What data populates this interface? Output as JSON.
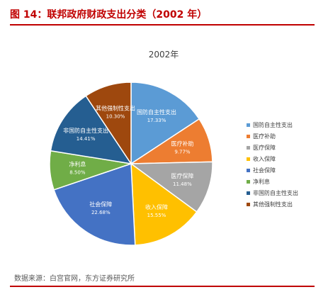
{
  "figure": {
    "title": "图 14：联邦政府财政支出分类（2002 年）",
    "source": "数据来源：白宫官网，东方证券研究所"
  },
  "colors": {
    "accent": "#c00000"
  },
  "chart_data": {
    "type": "pie",
    "title": "2002年",
    "legend_position": "right",
    "slices": [
      {
        "label": "国防自主性支出",
        "value": 17.33,
        "display": "17.33%",
        "color": "#5b9bd5"
      },
      {
        "label": "医疗补助",
        "value": 9.77,
        "display": "9.77%",
        "color": "#ed7d31"
      },
      {
        "label": "医疗保障",
        "value": 11.48,
        "display": "11.48%",
        "color": "#a5a5a5"
      },
      {
        "label": "收入保障",
        "value": 15.55,
        "display": "15.55%",
        "color": "#ffc000"
      },
      {
        "label": "社会保障",
        "value": 22.68,
        "display": "22.68%",
        "color": "#4472c4"
      },
      {
        "label": "净利息",
        "value": 8.5,
        "display": "8.50%",
        "color": "#70ad47"
      },
      {
        "label": "非国防自主性支出",
        "value": 14.41,
        "display": "14.41%",
        "color": "#255e91"
      },
      {
        "label": "其他强制性支出",
        "value": 10.3,
        "display": "10.30%",
        "color": "#9e480e"
      }
    ]
  }
}
